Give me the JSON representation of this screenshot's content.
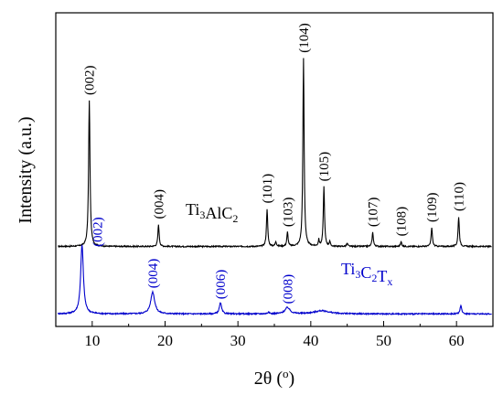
{
  "chart_data": {
    "type": "line",
    "title": "",
    "xlabel": "2θ (",
    "xlabel_sup": "o",
    "xlabel_end": ")",
    "ylabel": "Intensity (a.u.)",
    "xlim": [
      5,
      65
    ],
    "ylim": [
      0,
      1
    ],
    "xticks": [
      10,
      20,
      30,
      40,
      50,
      60
    ],
    "xtick_labels": [
      "10",
      "20",
      "30",
      "40",
      "50",
      "60"
    ],
    "y_ticks_shown": false,
    "grid": false,
    "legend": "none",
    "series": [
      {
        "label_parts": [
          {
            "text": "Ti",
            "sub": false
          },
          {
            "text": "3",
            "sub": true
          },
          {
            "text": "AlC",
            "sub": false
          },
          {
            "text": "2",
            "sub": true
          }
        ],
        "color": "#000000",
        "baseline": 0.255,
        "peaks": [
          {
            "pos": 9.6,
            "height": 0.465,
            "width": 0.28,
            "label": "(002)"
          },
          {
            "pos": 19.1,
            "height": 0.07,
            "width": 0.25,
            "label": "(004)"
          },
          {
            "pos": 34.0,
            "height": 0.12,
            "width": 0.25,
            "label": "(101)"
          },
          {
            "pos": 35.2,
            "height": 0.015,
            "width": 0.25,
            "label": ""
          },
          {
            "pos": 36.8,
            "height": 0.045,
            "width": 0.25,
            "label": "(103)"
          },
          {
            "pos": 39.0,
            "height": 0.6,
            "width": 0.25,
            "label": "(104)"
          },
          {
            "pos": 41.1,
            "height": 0.02,
            "width": 0.2,
            "label": ""
          },
          {
            "pos": 41.8,
            "height": 0.19,
            "width": 0.25,
            "label": "(105)"
          },
          {
            "pos": 42.6,
            "height": 0.015,
            "width": 0.2,
            "label": ""
          },
          {
            "pos": 45.0,
            "height": 0.01,
            "width": 0.25,
            "label": ""
          },
          {
            "pos": 48.5,
            "height": 0.045,
            "width": 0.25,
            "label": "(107)"
          },
          {
            "pos": 52.4,
            "height": 0.015,
            "width": 0.25,
            "label": "(108)"
          },
          {
            "pos": 56.6,
            "height": 0.06,
            "width": 0.25,
            "label": "(109)"
          },
          {
            "pos": 60.3,
            "height": 0.095,
            "width": 0.25,
            "label": "(110)"
          }
        ]
      },
      {
        "label_parts": [
          {
            "text": "Ti",
            "sub": false
          },
          {
            "text": "3",
            "sub": true
          },
          {
            "text": "C",
            "sub": false
          },
          {
            "text": "2",
            "sub": true
          },
          {
            "text": "T",
            "sub": false
          },
          {
            "text": "x",
            "sub": true
          }
        ],
        "color": "#0000cc",
        "baseline": 0.04,
        "peaks": [
          {
            "pos": 8.6,
            "height": 0.22,
            "width": 0.55,
            "label": "(002)"
          },
          {
            "pos": 18.3,
            "height": 0.07,
            "width": 0.8,
            "label": "(004)"
          },
          {
            "pos": 27.6,
            "height": 0.035,
            "width": 0.45,
            "label": "(006)"
          },
          {
            "pos": 34.2,
            "height": 0.006,
            "width": 0.3,
            "label": ""
          },
          {
            "pos": 36.8,
            "height": 0.02,
            "width": 1.0,
            "label": "(008)"
          },
          {
            "pos": 41.5,
            "height": 0.01,
            "width": 3.0,
            "label": ""
          },
          {
            "pos": 60.6,
            "height": 0.025,
            "width": 0.35,
            "label": ""
          }
        ]
      }
    ]
  }
}
